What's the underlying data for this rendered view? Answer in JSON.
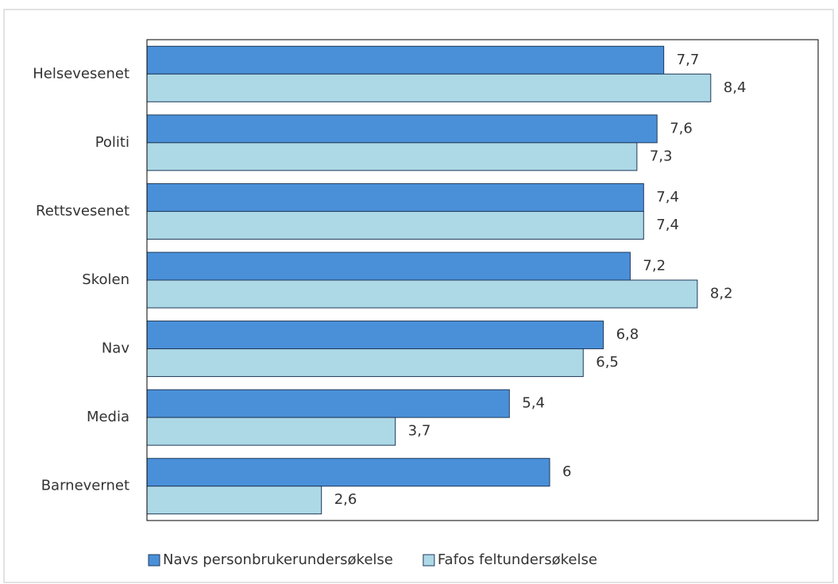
{
  "chart_data": {
    "type": "hbar",
    "categories": [
      "Helsevesenet",
      "Politi",
      "Rettsvesenet",
      "Skolen",
      "Nav",
      "Media",
      "Barnevernet"
    ],
    "series": [
      {
        "name": "Navs personbrukerundersøkelse",
        "color": "#4a90d9",
        "values": [
          7.7,
          7.6,
          7.4,
          7.2,
          6.8,
          5.4,
          6
        ],
        "value_labels": [
          "7,7",
          "7,6",
          "7,4",
          "7,2",
          "6,8",
          "5,4",
          "6"
        ]
      },
      {
        "name": "Fafos feltundersøkelse",
        "color": "#add8e6",
        "values": [
          8.4,
          7.3,
          7.4,
          8.2,
          6.5,
          3.7,
          2.6
        ],
        "value_labels": [
          "8,4",
          "7,3",
          "7,4",
          "8,2",
          "6,5",
          "3,7",
          "2,6"
        ]
      }
    ],
    "xlim": [
      0,
      10
    ],
    "legend": "bottom"
  }
}
